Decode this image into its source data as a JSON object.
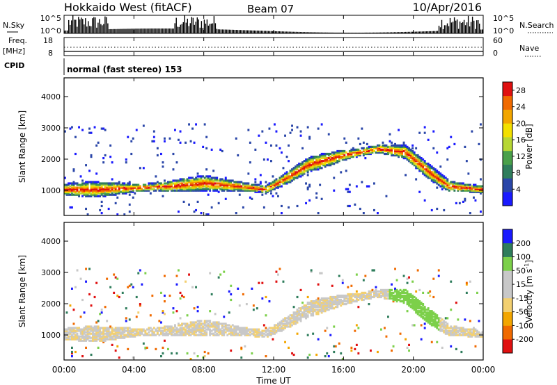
{
  "header": {
    "radar": "Hokkaido West (fitACF)",
    "beam": "Beam 07",
    "date": "10/Apr/2016"
  },
  "small_panels": {
    "nsky_label": "N.Sky",
    "nsky_ticks": [
      "10^5",
      "10^0"
    ],
    "nsearch_label": "N.Search",
    "nsearch_ticks": [
      "10^5",
      "10^0"
    ],
    "freq_label": "Freq.",
    "freq_unit": "[MHz]",
    "freq_ticks": [
      "18",
      "8"
    ],
    "nave_label": "Nave",
    "nave_ticks": [
      "60",
      "0"
    ],
    "cpid_label": "CPID",
    "cpid_text": "normal (fast stereo) 153"
  },
  "colors": {
    "power_scale": [
      "#1a1aff",
      "#2a46a8",
      "#2f7d5c",
      "#4aa04a",
      "#b7d734",
      "#f3e000",
      "#f3a600",
      "#f06a00",
      "#e01010"
    ],
    "velocity_scale": [
      "#e01010",
      "#f06a00",
      "#f3a600",
      "#f3d070",
      "#c8c8c8",
      "#c8c8c8",
      "#7cd04a",
      "#2f7d5c",
      "#1a1aff"
    ]
  },
  "chart_data": [
    {
      "type": "heatmap",
      "name": "power",
      "ylabel": "Slant Range [km]",
      "yticks": [
        "1000",
        "2000",
        "3000",
        "4000"
      ],
      "ylim": [
        200,
        4600
      ],
      "xticks": [
        "00:00",
        "04:00",
        "08:00",
        "12:00",
        "16:00",
        "20:00",
        "00:00"
      ],
      "xlim_hours": [
        0,
        24
      ],
      "colorbar_label": "Power [dB]",
      "colorbar_ticks": [
        "4",
        "8",
        "12",
        "16",
        "20",
        "24",
        "28"
      ],
      "colorbar_range": [
        0,
        30
      ],
      "echo_band_center_km": [
        {
          "t": 0,
          "r": 1000
        },
        {
          "t": 2,
          "r": 1000
        },
        {
          "t": 4,
          "r": 1050
        },
        {
          "t": 6,
          "r": 1100
        },
        {
          "t": 8,
          "r": 1200
        },
        {
          "t": 10,
          "r": 1100
        },
        {
          "t": 11.5,
          "r": 1000
        },
        {
          "t": 12.5,
          "r": 1300
        },
        {
          "t": 14,
          "r": 1800
        },
        {
          "t": 16,
          "r": 2100
        },
        {
          "t": 18,
          "r": 2300
        },
        {
          "t": 19.5,
          "r": 2200
        },
        {
          "t": 21,
          "r": 1500
        },
        {
          "t": 22,
          "r": 1100
        },
        {
          "t": 24,
          "r": 1000
        }
      ],
      "peak_power_db": 28
    },
    {
      "type": "heatmap",
      "name": "velocity",
      "ylabel": "Slant Range [km]",
      "yticks": [
        "1000",
        "2000",
        "3000",
        "4000"
      ],
      "ylim": [
        200,
        4600
      ],
      "xticks": [
        "00:00",
        "04:00",
        "08:00",
        "12:00",
        "16:00",
        "20:00",
        "00:00"
      ],
      "xlim_hours": [
        0,
        24
      ],
      "xlabel": "Time UT",
      "colorbar_label": "Velocity [m s",
      "colorbar_label_sup": "-1",
      "colorbar_label_end": "]",
      "colorbar_ticks": [
        "-200",
        "-100",
        "-50",
        "-15",
        "15",
        "50",
        "100",
        "200"
      ],
      "colorbar_range": [
        -250,
        250
      ]
    }
  ]
}
